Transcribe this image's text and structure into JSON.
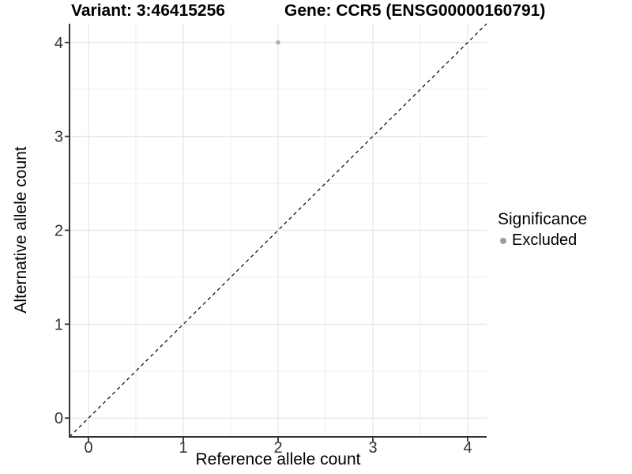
{
  "chart_data": {
    "type": "scatter",
    "title_left": "Variant: 3:46415256",
    "title_right": "Gene: CCR5 (ENSG00000160791)",
    "xlabel": "Reference allele count",
    "ylabel": "Alternative allele count",
    "xlim": [
      -0.2,
      4.2
    ],
    "ylim": [
      -0.2,
      4.2
    ],
    "xticks": [
      0,
      1,
      2,
      3,
      4
    ],
    "yticks": [
      0,
      1,
      2,
      3,
      4
    ],
    "xminor": [
      0.5,
      1.5,
      2.5,
      3.5
    ],
    "yminor": [
      0.5,
      1.5,
      2.5,
      3.5
    ],
    "grid": "major and minor gridlines, white background",
    "identity_line": {
      "slope": 1,
      "intercept": 0,
      "style": "dashed",
      "color": "#000000"
    },
    "series": [
      {
        "name": "Excluded",
        "color": "#b3b3b3",
        "points": [
          {
            "x": 2,
            "y": 4
          }
        ]
      }
    ],
    "legend": {
      "title": "Significance",
      "position": "right",
      "items": [
        {
          "label": "Excluded",
          "color": "#9e9e9e"
        }
      ]
    },
    "colors": {
      "axis_line": "#333333",
      "tick_mark": "#333333",
      "tick_label": "#333333",
      "grid_major": "#e4e4e4",
      "grid_minor": "#f0f0f0",
      "background": "#ffffff"
    }
  }
}
